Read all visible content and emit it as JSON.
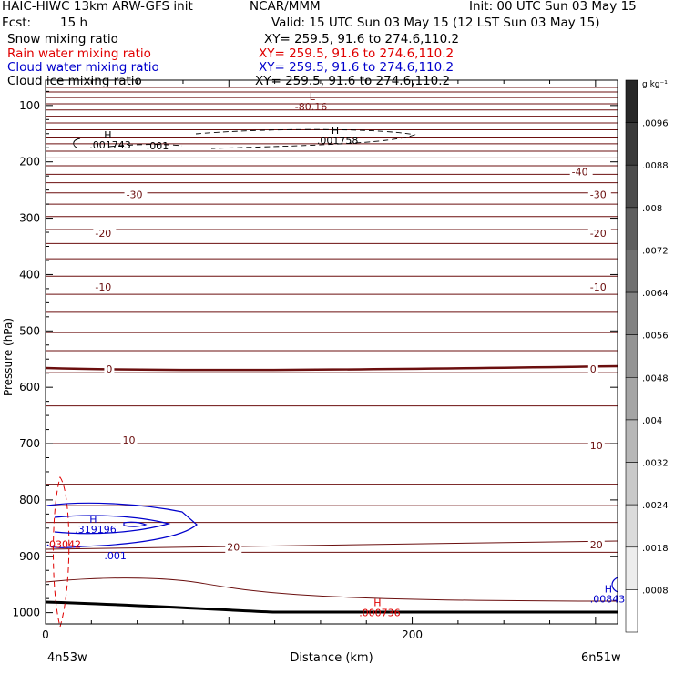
{
  "header": {
    "title": "HAIC-HIWC 13km ARW-GFS init",
    "org": "NCAR/MMM",
    "init": "Init: 00 UTC Sun 03 May 15",
    "fcst_label": "Fcst:",
    "fcst_value": "15 h",
    "valid": "Valid: 15 UTC Sun 03 May 15 (12 LST Sun 03 May 15)"
  },
  "fields": [
    {
      "name": "Snow mixing ratio",
      "xy": "XY= 259.5, 91.6 to 274.6,110.2",
      "color": "#000000"
    },
    {
      "name": "Rain water mixing ratio",
      "xy": "XY= 259.5, 91.6 to 274.6,110.2",
      "color": "#e00000"
    },
    {
      "name": "Cloud water mixing ratio",
      "xy": "XY= 259.5, 91.6 to 274.6,110.2",
      "color": "#0000cc"
    },
    {
      "name": "Cloud ice mixing ratio",
      "xy": "XY= 259.5, 91.6 to 274.6,110.2",
      "color": "#000000"
    }
  ],
  "chart_data": {
    "type": "contour cross-section",
    "xlabel": "Distance (km)",
    "ylabel": "Pressure (hPa)",
    "xlim": [
      0,
      312
    ],
    "ylim": [
      1020,
      55
    ],
    "x_ticks": [
      0,
      200
    ],
    "y_ticks": [
      100,
      200,
      300,
      400,
      500,
      600,
      700,
      800,
      900,
      1000
    ],
    "left_endpoint": "4n53w",
    "right_endpoint": "6n51w",
    "colorbar": {
      "unit": "g kg⁻¹",
      "labels": [
        ".0096",
        ".0088",
        ".008",
        ".0072",
        ".0064",
        ".0056",
        ".0048",
        ".004",
        ".0032",
        ".0024",
        ".0018",
        ".0008"
      ]
    },
    "temperature_labels": [
      {
        "text": "-40",
        "x": 287,
        "y": 224
      },
      {
        "text": "-30",
        "x": 44,
        "y": 264
      },
      {
        "text": "-30",
        "x": 297,
        "y": 264
      },
      {
        "text": "-20",
        "x": 27,
        "y": 333
      },
      {
        "text": "-20",
        "x": 297,
        "y": 333
      },
      {
        "text": "-10",
        "x": 27,
        "y": 428
      },
      {
        "text": "-10",
        "x": 297,
        "y": 428
      },
      {
        "text": "0",
        "x": 33,
        "y": 574
      },
      {
        "text": "0",
        "x": 297,
        "y": 574
      },
      {
        "text": "10",
        "x": 42,
        "y": 700
      },
      {
        "text": "10",
        "x": 297,
        "y": 710
      },
      {
        "text": "20",
        "x": 99,
        "y": 890
      },
      {
        "text": "20",
        "x": 297,
        "y": 886
      }
    ],
    "extrema": [
      {
        "marker": "L",
        "value": "-80.16",
        "x": 136,
        "y": 108,
        "color": "#7a1515"
      },
      {
        "marker": "H",
        "value": ".001743",
        "x": 24,
        "y": 176,
        "color": "#000000"
      },
      {
        "marker": "",
        "value": ".001",
        "x": 55,
        "y": 178,
        "color": "#000000"
      },
      {
        "marker": "H",
        "value": ".001758",
        "x": 148,
        "y": 168,
        "color": "#000000"
      },
      {
        "marker": "H",
        "value": ".319196",
        "x": 16,
        "y": 858,
        "color": "#0000cc"
      },
      {
        "marker": "",
        "value": ".001",
        "x": 32,
        "y": 905,
        "color": "#0000cc"
      },
      {
        "marker": "",
        "value": "03042",
        "x": 2,
        "y": 885,
        "color": "#e00000"
      },
      {
        "marker": "H",
        "value": ".008439",
        "x": 297,
        "y": 982,
        "color": "#0000cc"
      },
      {
        "marker": "H",
        "value": ".000736",
        "x": 171,
        "y": 1006,
        "color": "#e00000"
      }
    ],
    "temperature_contour_pressures": [
      68,
      76,
      86,
      97,
      108,
      119,
      131,
      143,
      156,
      168,
      181,
      193,
      207,
      222,
      237,
      255,
      275,
      297,
      320,
      345,
      372,
      403,
      435,
      467,
      503,
      535,
      574,
      633,
      700,
      772,
      810,
      840,
      893
    ]
  }
}
